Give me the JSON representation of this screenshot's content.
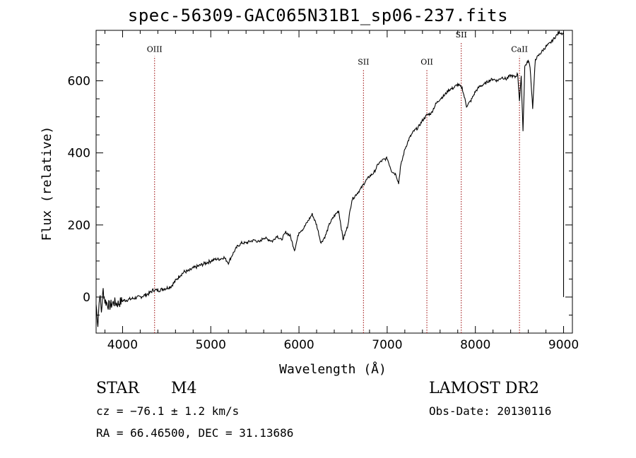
{
  "title": "spec-56309-GAC065N31B1_sp06-237.fits",
  "chart_data": {
    "type": "line",
    "title": "spec-56309-GAC065N31B1_sp06-237.fits",
    "xlabel": "Wavelength (Å)",
    "ylabel": "Flux (relative)",
    "xlim": [
      3700,
      9100
    ],
    "ylim": [
      -100,
      740
    ],
    "xticks": [
      4000,
      5000,
      6000,
      7000,
      8000,
      9000
    ],
    "yticks": [
      0,
      200,
      400,
      600
    ],
    "grid": false,
    "series": [
      {
        "color": "#000000",
        "points": [
          [
            3700,
            -20
          ],
          [
            3720,
            -75
          ],
          [
            3740,
            10
          ],
          [
            3760,
            -40
          ],
          [
            3780,
            20
          ],
          [
            3800,
            -10
          ],
          [
            3850,
            -25
          ],
          [
            3900,
            -15
          ],
          [
            3950,
            -18
          ],
          [
            4000,
            -10
          ],
          [
            4050,
            -8
          ],
          [
            4100,
            -5
          ],
          [
            4150,
            -2
          ],
          [
            4200,
            0
          ],
          [
            4250,
            5
          ],
          [
            4300,
            10
          ],
          [
            4350,
            20
          ],
          [
            4400,
            18
          ],
          [
            4450,
            22
          ],
          [
            4500,
            25
          ],
          [
            4550,
            30
          ],
          [
            4600,
            45
          ],
          [
            4650,
            60
          ],
          [
            4700,
            70
          ],
          [
            4750,
            72
          ],
          [
            4800,
            80
          ],
          [
            4850,
            85
          ],
          [
            4900,
            90
          ],
          [
            4950,
            95
          ],
          [
            5000,
            100
          ],
          [
            5050,
            105
          ],
          [
            5100,
            105
          ],
          [
            5150,
            110
          ],
          [
            5200,
            95
          ],
          [
            5250,
            120
          ],
          [
            5300,
            140
          ],
          [
            5350,
            150
          ],
          [
            5400,
            150
          ],
          [
            5450,
            155
          ],
          [
            5500,
            158
          ],
          [
            5550,
            152
          ],
          [
            5600,
            165
          ],
          [
            5650,
            160
          ],
          [
            5700,
            155
          ],
          [
            5750,
            170
          ],
          [
            5800,
            158
          ],
          [
            5850,
            180
          ],
          [
            5900,
            170
          ],
          [
            5950,
            130
          ],
          [
            6000,
            180
          ],
          [
            6050,
            190
          ],
          [
            6100,
            210
          ],
          [
            6150,
            230
          ],
          [
            6200,
            200
          ],
          [
            6250,
            150
          ],
          [
            6300,
            170
          ],
          [
            6350,
            205
          ],
          [
            6400,
            225
          ],
          [
            6450,
            240
          ],
          [
            6500,
            160
          ],
          [
            6550,
            195
          ],
          [
            6600,
            270
          ],
          [
            6650,
            285
          ],
          [
            6700,
            300
          ],
          [
            6750,
            320
          ],
          [
            6800,
            335
          ],
          [
            6850,
            345
          ],
          [
            6900,
            370
          ],
          [
            6950,
            380
          ],
          [
            7000,
            385
          ],
          [
            7050,
            350
          ],
          [
            7100,
            340
          ],
          [
            7130,
            315
          ],
          [
            7150,
            360
          ],
          [
            7200,
            410
          ],
          [
            7250,
            440
          ],
          [
            7300,
            460
          ],
          [
            7350,
            470
          ],
          [
            7400,
            490
          ],
          [
            7450,
            505
          ],
          [
            7500,
            510
          ],
          [
            7550,
            535
          ],
          [
            7600,
            550
          ],
          [
            7650,
            560
          ],
          [
            7700,
            575
          ],
          [
            7750,
            580
          ],
          [
            7800,
            590
          ],
          [
            7850,
            580
          ],
          [
            7900,
            530
          ],
          [
            7950,
            545
          ],
          [
            8000,
            570
          ],
          [
            8050,
            585
          ],
          [
            8100,
            590
          ],
          [
            8150,
            600
          ],
          [
            8200,
            605
          ],
          [
            8250,
            600
          ],
          [
            8300,
            610
          ],
          [
            8350,
            605
          ],
          [
            8400,
            615
          ],
          [
            8450,
            610
          ],
          [
            8480,
            620
          ],
          [
            8500,
            545
          ],
          [
            8520,
            610
          ],
          [
            8540,
            460
          ],
          [
            8560,
            640
          ],
          [
            8600,
            655
          ],
          [
            8620,
            640
          ],
          [
            8650,
            525
          ],
          [
            8680,
            660
          ],
          [
            8700,
            665
          ],
          [
            8750,
            680
          ],
          [
            8800,
            695
          ],
          [
            8850,
            705
          ],
          [
            8900,
            720
          ],
          [
            8950,
            735
          ],
          [
            9000,
            730
          ],
          [
            9000,
            620
          ],
          [
            9000,
            150
          ],
          [
            9000,
            0
          ]
        ]
      }
    ],
    "lines": [
      {
        "label": "OIII",
        "x": 4363,
        "label_y": 680
      },
      {
        "label": "SII",
        "x": 6731,
        "label_y": 645
      },
      {
        "label": "OII",
        "x": 7450,
        "label_y": 645
      },
      {
        "label": "SII",
        "x": 7840,
        "label_y": 720
      },
      {
        "label": "CaII",
        "x": 8500,
        "label_y": 680
      }
    ],
    "line_color": "#990000"
  },
  "info": {
    "class_label": "STAR",
    "subclass": "M4",
    "survey": "LAMOST DR2",
    "cz": "cz = −76.1 ± 1.2 km/s",
    "obs_date": "Obs-Date: 20130116",
    "radec": "RA =  66.46500, DEC =  31.13686"
  }
}
